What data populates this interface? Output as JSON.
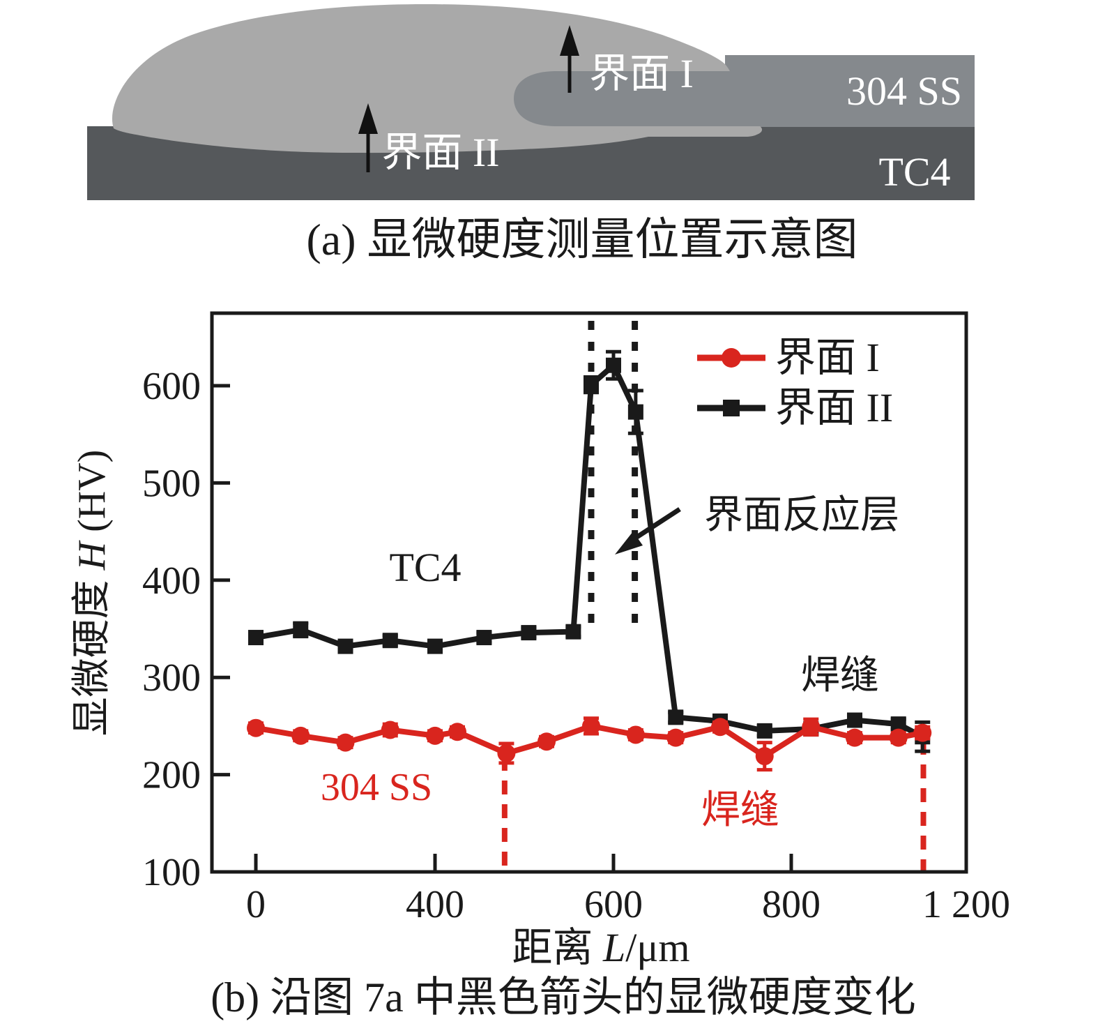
{
  "panel_a": {
    "caption": "(a) 显微硬度测量位置示意图",
    "label_interface1": "界面 I",
    "label_interface2": "界面 II",
    "label_304ss": "304 SS",
    "label_tc4": "TC4",
    "colors": {
      "weld_nugget": "#a9a9a9",
      "ss_plate": "#85898d",
      "tc4_plate": "#55585b",
      "arrow": "#111111",
      "label_text": "#ffffff"
    }
  },
  "panel_b": {
    "caption": "(b) 沿图 7a 中黑色箭头的显微硬度变化",
    "xlabel_prefix": "距离 ",
    "xlabel_var": "L",
    "xlabel_unit": "/μm",
    "ylabel_prefix": "显微硬度 ",
    "ylabel_var": "H",
    "ylabel_unit": " (HV)",
    "annotation_reaction_layer": "界面反应层",
    "label_tc4": "TC4",
    "label_weld_black": "焊缝",
    "label_304ss": "304 SS",
    "label_weld_red": "焊缝"
  },
  "chart_data": {
    "type": "line",
    "title": "",
    "xlabel": "距离 L/μm",
    "ylabel": "显微硬度 H (HV)",
    "x_tick_labels": [
      "0",
      "400",
      "600",
      "800",
      "1 200"
    ],
    "x_tick_values": [
      0,
      400,
      600,
      800,
      1200
    ],
    "x_axis_note": "tick labels equally spaced in pixels as in the original figure (non-linear µm scale)",
    "y_ticks": [
      100,
      200,
      300,
      400,
      500,
      600
    ],
    "ylim": [
      100,
      675
    ],
    "grid": false,
    "legend_position": "top-right",
    "legend": [
      "界面 I",
      "界面 II"
    ],
    "series": [
      {
        "name": "界面 II",
        "color": "#1a1a1a",
        "marker": "square",
        "x": [
          0,
          100,
          200,
          300,
          400,
          455,
          505,
          555,
          575,
          600,
          625,
          670,
          720,
          770,
          845,
          945,
          1045,
          1100
        ],
        "y": [
          341,
          349,
          332,
          338,
          332,
          341,
          346,
          347,
          601,
          621,
          573,
          259,
          255,
          245,
          247,
          256,
          252,
          239
        ],
        "err": [
          5,
          7,
          5,
          5,
          5,
          5,
          5,
          5,
          8,
          14,
          22,
          5,
          6,
          5,
          5,
          5,
          5,
          15
        ]
      },
      {
        "name": "界面 I",
        "color": "#d9251e",
        "marker": "circle",
        "x": [
          0,
          100,
          200,
          300,
          400,
          425,
          480,
          525,
          575,
          625,
          670,
          720,
          770,
          845,
          945,
          1045,
          1100
        ],
        "y": [
          248,
          240,
          233,
          246,
          240,
          244,
          222,
          234,
          250,
          241,
          238,
          249,
          219,
          249,
          238,
          238,
          243
        ],
        "err": [
          5,
          5,
          5,
          6,
          5,
          5,
          10,
          5,
          8,
          5,
          5,
          5,
          14,
          8,
          5,
          5,
          6
        ]
      }
    ],
    "guide_lines": {
      "black_dashed_um": [
        575,
        624
      ],
      "red_dashed_um": [
        478,
        1102
      ]
    },
    "annotations": [
      "界面反应层",
      "TC4",
      "焊缝",
      "304 SS",
      "焊缝"
    ]
  }
}
